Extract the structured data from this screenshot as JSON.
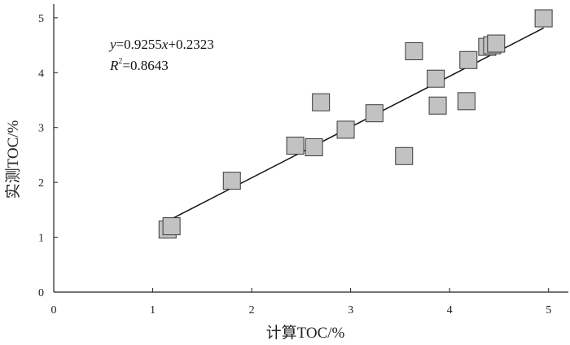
{
  "chart_data": {
    "type": "scatter",
    "xlabel": "计算TOC/%",
    "ylabel": "实测TOC/%",
    "xlim": [
      0,
      5.2
    ],
    "ylim": [
      0,
      5.25
    ],
    "xticks": [
      "0",
      "1",
      "2",
      "3",
      "4",
      "5"
    ],
    "yticks": [
      "0",
      "1",
      "2",
      "3",
      "4",
      "5"
    ],
    "points": [
      {
        "x": 1.15,
        "y": 1.14
      },
      {
        "x": 1.19,
        "y": 1.2
      },
      {
        "x": 1.8,
        "y": 2.03
      },
      {
        "x": 2.44,
        "y": 2.67
      },
      {
        "x": 2.63,
        "y": 2.64
      },
      {
        "x": 2.7,
        "y": 3.46
      },
      {
        "x": 2.95,
        "y": 2.96
      },
      {
        "x": 3.24,
        "y": 3.26
      },
      {
        "x": 3.54,
        "y": 2.48
      },
      {
        "x": 3.64,
        "y": 4.39
      },
      {
        "x": 3.86,
        "y": 3.89
      },
      {
        "x": 3.88,
        "y": 3.4
      },
      {
        "x": 4.17,
        "y": 3.48
      },
      {
        "x": 4.19,
        "y": 4.23
      },
      {
        "x": 4.38,
        "y": 4.47
      },
      {
        "x": 4.43,
        "y": 4.5
      },
      {
        "x": 4.47,
        "y": 4.53
      },
      {
        "x": 4.95,
        "y": 4.99
      }
    ],
    "fit": {
      "slope": 0.9255,
      "intercept": 0.2323,
      "x_range": [
        1.15,
        4.95
      ]
    },
    "annotation": {
      "equation": {
        "y": "y",
        "eq": "=0.9255",
        "x": "x",
        "tail": "+0.2323"
      },
      "r2": {
        "r": "R",
        "sup": "2",
        "tail": "=0.8643"
      }
    },
    "colors": {
      "marker_fill": "#c2c2c2",
      "marker_stroke": "#3a3a3a",
      "line": "#111111",
      "axis": "#222222"
    }
  }
}
